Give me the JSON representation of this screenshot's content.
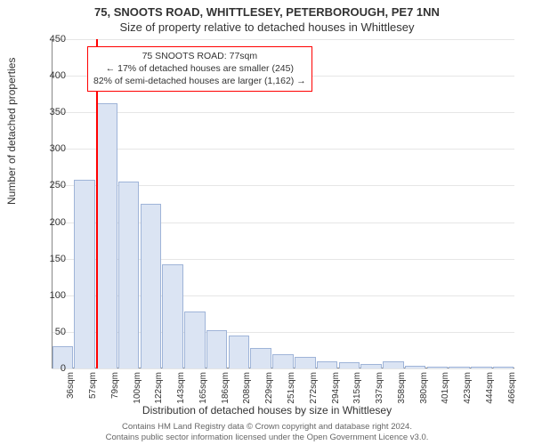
{
  "title": {
    "line1": "75, SNOOTS ROAD, WHITTLESEY, PETERBOROUGH, PE7 1NN",
    "line2": "Size of property relative to detached houses in Whittlesey"
  },
  "chart": {
    "type": "histogram",
    "y_label": "Number of detached properties",
    "x_label": "Distribution of detached houses by size in Whittlesey",
    "ylim": [
      0,
      450
    ],
    "ytick_step": 50,
    "y_ticks": [
      0,
      50,
      100,
      150,
      200,
      250,
      300,
      350,
      400,
      450
    ],
    "x_categories": [
      "36sqm",
      "57sqm",
      "79sqm",
      "100sqm",
      "122sqm",
      "143sqm",
      "165sqm",
      "186sqm",
      "208sqm",
      "229sqm",
      "251sqm",
      "272sqm",
      "294sqm",
      "315sqm",
      "337sqm",
      "358sqm",
      "380sqm",
      "401sqm",
      "423sqm",
      "444sqm",
      "466sqm"
    ],
    "values": [
      30,
      258,
      363,
      255,
      225,
      142,
      78,
      52,
      45,
      28,
      20,
      16,
      10,
      8,
      6,
      10,
      4,
      2,
      3,
      2,
      2
    ],
    "bar_fill": "#dbe4f3",
    "bar_stroke": "#9fb4d8",
    "background_color": "#ffffff",
    "grid_color": "#e6e6e6",
    "axis_color": "#888888",
    "tick_fontsize": 11,
    "label_fontsize": 12,
    "title_fontsize": 13,
    "bar_gap_ratio": 0.05
  },
  "marker": {
    "position_category_index": 2,
    "color": "#ff0000"
  },
  "annotation": {
    "line1": "75 SNOOTS ROAD: 77sqm",
    "line2": "← 17% of detached houses are smaller (245)",
    "line3": "82% of semi-detached houses are larger (1,162) →",
    "border_color": "#ff0000"
  },
  "footer": {
    "line1": "Contains HM Land Registry data © Crown copyright and database right 2024.",
    "line2": "Contains public sector information licensed under the Open Government Licence v3.0."
  }
}
